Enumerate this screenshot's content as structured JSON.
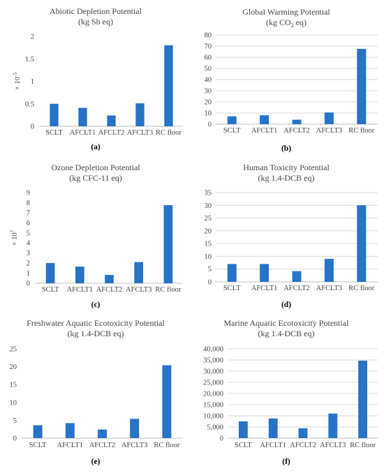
{
  "chart_data": [
    {
      "type": "bar",
      "panel": "(a)",
      "title": "Abiotic Depletion Potential",
      "subtitle": "(kg Sb eq)",
      "ylabel_multiplier": "× 10",
      "ylabel_exponent": "-5",
      "categories": [
        "SCLT",
        "AFCLT1",
        "AFCLT2",
        "AFCLT3",
        "RC floor"
      ],
      "values": [
        0.5,
        0.41,
        0.24,
        0.51,
        1.8
      ],
      "ylim": [
        0,
        2
      ],
      "yticks": [
        0,
        0.5,
        1,
        1.5,
        2
      ],
      "ytick_labels": [
        "0",
        "0.5",
        "1",
        "1.5",
        "2"
      ],
      "grid": false,
      "color": "#2673C8"
    },
    {
      "type": "bar",
      "panel": "(b)",
      "title": "Global Warming Potential",
      "subtitle_parts": [
        "(kg CO",
        "2",
        " eq)"
      ],
      "categories": [
        "SCLT",
        "AFCLT1",
        "AFCLT2",
        "AFCLT3",
        "RC floor"
      ],
      "values": [
        7,
        8,
        4,
        10.5,
        67.5
      ],
      "ylim": [
        0,
        80
      ],
      "yticks": [
        0,
        10,
        20,
        30,
        40,
        50,
        60,
        70,
        80
      ],
      "ytick_labels": [
        "0",
        "10",
        "20",
        "30",
        "40",
        "50",
        "60",
        "70",
        "80"
      ],
      "grid": true,
      "color": "#2673C8"
    },
    {
      "type": "bar",
      "panel": "(c)",
      "title": "Ozone Depletion Potential",
      "subtitle": "(kg CFC-11 eq)",
      "ylabel_multiplier": "× 10",
      "ylabel_exponent": "7",
      "categories": [
        "SCLT",
        "AFCLT1",
        "AFCLT2",
        "AFCLT3",
        "RC floor"
      ],
      "values": [
        2,
        1.65,
        0.82,
        2.1,
        7.75
      ],
      "ylim": [
        0,
        9
      ],
      "yticks": [
        0,
        1,
        2,
        3,
        4,
        5,
        6,
        7,
        8,
        9
      ],
      "ytick_labels": [
        "0",
        "1",
        "2",
        "3",
        "4",
        "5",
        "6",
        "7",
        "8",
        "9"
      ],
      "grid": false,
      "color": "#2673C8"
    },
    {
      "type": "bar",
      "panel": "(d)",
      "title": "Human Toxicity Potential",
      "subtitle": "(kg 1.4-DCB eq)",
      "categories": [
        "SCLT",
        "AFCLT1",
        "AFCLT2",
        "AFCLT3",
        "RC floor"
      ],
      "values": [
        7,
        7,
        4.2,
        9,
        30
      ],
      "ylim": [
        0,
        35
      ],
      "yticks": [
        0,
        5,
        10,
        15,
        20,
        25,
        30,
        35
      ],
      "ytick_labels": [
        "0",
        "5",
        "10",
        "15",
        "20",
        "25",
        "30",
        "35"
      ],
      "grid": true,
      "color": "#2673C8"
    },
    {
      "type": "bar",
      "panel": "(e)",
      "title": "Freshwater Aquatic Ecotoxicity Potential",
      "subtitle": "(kg 1.4-DCB eq)",
      "categories": [
        "SCLT",
        "AFCLT1",
        "AFCLT2",
        "AFCLT3",
        "RC floor"
      ],
      "values": [
        3.6,
        4.2,
        2.4,
        5.4,
        20.4
      ],
      "ylim": [
        0,
        25
      ],
      "yticks": [
        0,
        5,
        10,
        15,
        20,
        25
      ],
      "ytick_labels": [
        "0",
        "5",
        "10",
        "15",
        "20",
        "25"
      ],
      "grid": false,
      "color": "#2673C8"
    },
    {
      "type": "bar",
      "panel": "(f)",
      "title": "Marine Aquatic Ecotoxicity Potential",
      "subtitle": "(kg 1.4-DCB eq)",
      "categories": [
        "SCLT",
        "AFCLT1",
        "AFCLT2",
        "AFCLT3",
        "RC floor"
      ],
      "values": [
        7500,
        8800,
        4400,
        11000,
        34700
      ],
      "ylim": [
        0,
        40000
      ],
      "yticks": [
        0,
        5000,
        10000,
        15000,
        20000,
        25000,
        30000,
        35000,
        40000
      ],
      "ytick_labels": [
        "0",
        "5,000",
        "10,000",
        "15,000",
        "20,000",
        "25,000",
        "30,000",
        "35,000",
        "40,000"
      ],
      "grid": true,
      "color": "#2673C8"
    }
  ]
}
